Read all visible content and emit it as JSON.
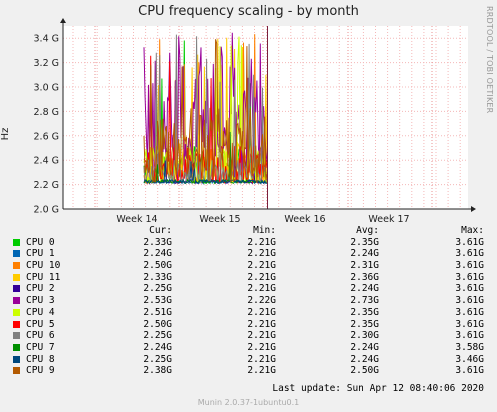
{
  "chart_data": {
    "type": "line",
    "title": "CPU frequency scaling - by month",
    "ylabel": "Hz",
    "ylim": [
      2.0,
      3.5
    ],
    "y_ticks": [
      "2.0 G",
      "2.2 G",
      "2.4 G",
      "2.6 G",
      "2.8 G",
      "3.0 G",
      "3.2 G",
      "3.4 G"
    ],
    "y_tick_values": [
      2.0,
      2.2,
      2.4,
      2.6,
      2.8,
      3.0,
      3.2,
      3.4
    ],
    "x_ticks": [
      "Week 14",
      "Week 15",
      "Week 16",
      "Week 17"
    ],
    "grid": true,
    "side_label": "RRDTOOL / TOBI OETIKER",
    "legend_headers": {
      "cur": "Cur:",
      "min": "Min:",
      "avg": "Avg:",
      "max": "Max:"
    },
    "series": [
      {
        "name": "CPU 0",
        "color": "#00cc00",
        "cur": "2.33G",
        "min": "2.21G",
        "avg": "2.35G",
        "max": "3.61G"
      },
      {
        "name": "CPU 1",
        "color": "#0066b3",
        "cur": "2.24G",
        "min": "2.21G",
        "avg": "2.24G",
        "max": "3.61G"
      },
      {
        "name": "CPU 10",
        "color": "#ff8000",
        "cur": "2.50G",
        "min": "2.21G",
        "avg": "2.31G",
        "max": "3.61G"
      },
      {
        "name": "CPU 11",
        "color": "#ffcc00",
        "cur": "2.33G",
        "min": "2.21G",
        "avg": "2.36G",
        "max": "3.61G"
      },
      {
        "name": "CPU 2",
        "color": "#330099",
        "cur": "2.25G",
        "min": "2.21G",
        "avg": "2.24G",
        "max": "3.61G"
      },
      {
        "name": "CPU 3",
        "color": "#990099",
        "cur": "2.53G",
        "min": "2.22G",
        "avg": "2.73G",
        "max": "3.61G"
      },
      {
        "name": "CPU 4",
        "color": "#ccff00",
        "cur": "2.51G",
        "min": "2.21G",
        "avg": "2.35G",
        "max": "3.61G"
      },
      {
        "name": "CPU 5",
        "color": "#ff0000",
        "cur": "2.50G",
        "min": "2.21G",
        "avg": "2.35G",
        "max": "3.61G"
      },
      {
        "name": "CPU 6",
        "color": "#808080",
        "cur": "2.25G",
        "min": "2.21G",
        "avg": "2.30G",
        "max": "3.61G"
      },
      {
        "name": "CPU 7",
        "color": "#008f00",
        "cur": "2.24G",
        "min": "2.21G",
        "avg": "2.24G",
        "max": "3.58G"
      },
      {
        "name": "CPU 8",
        "color": "#00487d",
        "cur": "2.25G",
        "min": "2.21G",
        "avg": "2.24G",
        "max": "3.46G"
      },
      {
        "name": "CPU 9",
        "color": "#b35a00",
        "cur": "2.38G",
        "min": "2.21G",
        "avg": "2.50G",
        "max": "3.61G"
      }
    ],
    "last_update": "Last update: Sun Apr 12 08:40:06 2020",
    "footer": "Munin 2.0.37-1ubuntu0.1"
  }
}
